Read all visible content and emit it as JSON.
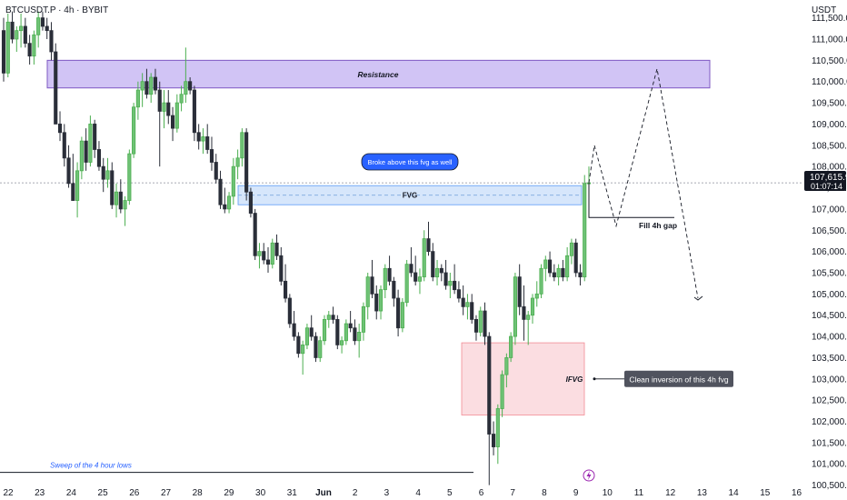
{
  "header": {
    "symbol": "BTCUSDT.P · 4h · BYBIT",
    "currency": "USDT"
  },
  "price_tag": {
    "price": "107,615.9",
    "countdown": "01:07:14"
  },
  "chart_data": {
    "type": "candlestick",
    "y_range": [
      100400,
      111700
    ],
    "y_ticks": [
      100500,
      101000,
      101500,
      102000,
      102500,
      103000,
      103500,
      104000,
      104500,
      105000,
      105500,
      106000,
      106500,
      107000,
      107500,
      108000,
      108500,
      109000,
      109500,
      110000,
      110500,
      111000,
      111500
    ],
    "y_tick_labels": [
      "100,500.0",
      "101,000.0",
      "101,500.0",
      "102,000.0",
      "102,500.0",
      "103,000.0",
      "103,500.0",
      "104,000.0",
      "104,500.0",
      "105,000.0",
      "105,500.0",
      "106,000.0",
      "106,500.0",
      "107,000.0",
      "107,500.0",
      "108,000.0",
      "108,500.0",
      "109,000.0",
      "109,500.0",
      "110,000.0",
      "110,500.0",
      "111,000.0",
      "111,500.0"
    ],
    "x_ticks": [
      "22",
      "23",
      "24",
      "25",
      "26",
      "27",
      "28",
      "29",
      "30",
      "31",
      "Jun",
      "2",
      "3",
      "4",
      "5",
      "6",
      "7",
      "8",
      "9",
      "10",
      "11",
      "12",
      "13",
      "14",
      "15",
      "16"
    ],
    "x_tick_bold": [
      false,
      false,
      false,
      false,
      false,
      false,
      false,
      false,
      false,
      false,
      true,
      false,
      false,
      false,
      false,
      false,
      false,
      false,
      false,
      false,
      false,
      false,
      false,
      false,
      false,
      false
    ],
    "candles": [
      [
        111200,
        111500,
        110000,
        110200
      ],
      [
        110200,
        111600,
        110100,
        111400
      ],
      [
        111400,
        111650,
        110900,
        111000
      ],
      [
        111000,
        111300,
        110700,
        111200
      ],
      [
        111200,
        111600,
        110800,
        111300
      ],
      [
        111300,
        111500,
        110800,
        110900
      ],
      [
        110900,
        111100,
        110400,
        110600
      ],
      [
        110600,
        111200,
        110400,
        111100
      ],
      [
        111100,
        111650,
        110800,
        111500
      ],
      [
        111500,
        111650,
        111200,
        111300
      ],
      [
        111300,
        111500,
        111000,
        111200
      ],
      [
        111200,
        111400,
        110500,
        110700
      ],
      [
        110700,
        110900,
        109000,
        109000
      ],
      [
        109000,
        109300,
        108600,
        108800
      ],
      [
        108800,
        109000,
        108000,
        108200
      ],
      [
        108200,
        108500,
        107500,
        107600
      ],
      [
        107600,
        108300,
        107200,
        107200
      ],
      [
        107200,
        108100,
        106800,
        107900
      ],
      [
        107900,
        108700,
        107700,
        108600
      ],
      [
        108600,
        108900,
        107900,
        108100
      ],
      [
        108100,
        109200,
        108000,
        109000
      ],
      [
        109000,
        109100,
        108200,
        108400
      ],
      [
        108400,
        108600,
        107900,
        108000
      ],
      [
        108000,
        108200,
        107400,
        107700
      ],
      [
        107700,
        108200,
        107500,
        107900
      ],
      [
        107900,
        108100,
        107000,
        107100
      ],
      [
        107100,
        107600,
        106800,
        107400
      ],
      [
        107400,
        107700,
        106900,
        107000
      ],
      [
        107000,
        107300,
        106600,
        107200
      ],
      [
        107200,
        108400,
        107100,
        108300
      ],
      [
        108300,
        109500,
        108200,
        109400
      ],
      [
        109400,
        110000,
        109100,
        109800
      ],
      [
        109800,
        110200,
        109400,
        110000
      ],
      [
        110000,
        110300,
        109600,
        109700
      ],
      [
        109700,
        110200,
        109500,
        110100
      ],
      [
        110100,
        110300,
        109700,
        109800
      ],
      [
        109800,
        110000,
        108000,
        109300
      ],
      [
        109300,
        109800,
        108900,
        109500
      ],
      [
        109500,
        109800,
        109000,
        109200
      ],
      [
        109200,
        109400,
        108600,
        108900
      ],
      [
        108900,
        109700,
        108800,
        109500
      ],
      [
        109500,
        109900,
        109300,
        109700
      ],
      [
        109700,
        110800,
        109500,
        110000
      ],
      [
        110000,
        110100,
        109700,
        109800
      ],
      [
        109800,
        109900,
        108600,
        108800
      ],
      [
        108800,
        109000,
        108400,
        108600
      ],
      [
        108600,
        108900,
        108300,
        108700
      ],
      [
        108700,
        109000,
        108300,
        108400
      ],
      [
        108400,
        108700,
        107900,
        108100
      ],
      [
        108100,
        108300,
        107600,
        107700
      ],
      [
        107700,
        107900,
        107000,
        107100
      ],
      [
        107100,
        107500,
        106900,
        107000
      ],
      [
        107000,
        107400,
        106900,
        107300
      ],
      [
        107300,
        108200,
        107100,
        108000
      ],
      [
        108000,
        108400,
        107700,
        108200
      ],
      [
        108200,
        108900,
        108000,
        108800
      ],
      [
        108800,
        108900,
        107200,
        107400
      ],
      [
        107400,
        107500,
        106800,
        106900
      ],
      [
        106900,
        107000,
        105800,
        105900
      ],
      [
        105900,
        106200,
        105600,
        106000
      ],
      [
        106000,
        106200,
        105700,
        105800
      ],
      [
        105800,
        106100,
        105500,
        105700
      ],
      [
        105700,
        106300,
        105600,
        106200
      ],
      [
        106200,
        106400,
        105800,
        105900
      ],
      [
        105900,
        106100,
        105200,
        105300
      ],
      [
        105300,
        105700,
        104800,
        104900
      ],
      [
        104900,
        105000,
        104200,
        104300
      ],
      [
        104300,
        104600,
        103900,
        104000
      ],
      [
        104000,
        104100,
        103500,
        103600
      ],
      [
        103600,
        103900,
        103100,
        103800
      ],
      [
        103800,
        104300,
        103700,
        104200
      ],
      [
        104200,
        104500,
        103900,
        104000
      ],
      [
        104000,
        104100,
        103400,
        103500
      ],
      [
        103500,
        104000,
        103400,
        103900
      ],
      [
        103900,
        104500,
        103800,
        104400
      ],
      [
        104400,
        104600,
        104200,
        104500
      ],
      [
        104500,
        104700,
        104300,
        104400
      ],
      [
        104400,
        104500,
        103700,
        103800
      ],
      [
        103800,
        104000,
        103600,
        103900
      ],
      [
        103900,
        104400,
        103800,
        104300
      ],
      [
        104300,
        104600,
        104100,
        104200
      ],
      [
        104200,
        104400,
        103800,
        103900
      ],
      [
        103900,
        104300,
        103500,
        104100
      ],
      [
        104100,
        104800,
        103900,
        104700
      ],
      [
        104700,
        105500,
        104400,
        105400
      ],
      [
        105400,
        105800,
        104900,
        105000
      ],
      [
        105000,
        105200,
        104400,
        104600
      ],
      [
        104600,
        105200,
        104400,
        105100
      ],
      [
        105100,
        105700,
        104900,
        105600
      ],
      [
        105600,
        105900,
        105200,
        105300
      ],
      [
        105300,
        105400,
        104700,
        104900
      ],
      [
        104900,
        105100,
        104000,
        104200
      ],
      [
        104200,
        104900,
        104100,
        104800
      ],
      [
        104800,
        105800,
        104700,
        105700
      ],
      [
        105700,
        106100,
        105400,
        105500
      ],
      [
        105500,
        105900,
        105200,
        105300
      ],
      [
        105300,
        105600,
        105000,
        105400
      ],
      [
        105400,
        106500,
        105300,
        106300
      ],
      [
        106300,
        106700,
        105900,
        106000
      ],
      [
        106000,
        106200,
        105300,
        105400
      ],
      [
        105400,
        105800,
        105200,
        105600
      ],
      [
        105600,
        105700,
        105300,
        105500
      ],
      [
        105500,
        105800,
        105100,
        105200
      ],
      [
        105200,
        105500,
        104900,
        105300
      ],
      [
        105300,
        105700,
        105000,
        105100
      ],
      [
        105100,
        105300,
        104800,
        104900
      ],
      [
        104900,
        105200,
        104500,
        104700
      ],
      [
        104700,
        105000,
        104400,
        104800
      ],
      [
        104800,
        105000,
        104300,
        104400
      ],
      [
        104400,
        104500,
        103900,
        104100
      ],
      [
        104100,
        104700,
        104000,
        104600
      ],
      [
        104600,
        104800,
        103800,
        104000
      ],
      [
        104000,
        104100,
        100500,
        101700
      ],
      [
        101700,
        102000,
        101200,
        101400
      ],
      [
        101400,
        102400,
        101000,
        102300
      ],
      [
        102300,
        103200,
        102100,
        103100
      ],
      [
        103100,
        103600,
        102800,
        103500
      ],
      [
        103500,
        104100,
        103400,
        104000
      ],
      [
        104000,
        105500,
        103800,
        105400
      ],
      [
        105400,
        105700,
        104500,
        104700
      ],
      [
        104700,
        105200,
        103900,
        104400
      ],
      [
        104400,
        104600,
        103800,
        104500
      ],
      [
        104500,
        105000,
        104300,
        104900
      ],
      [
        104900,
        105300,
        104700,
        105000
      ],
      [
        105000,
        105700,
        104900,
        105600
      ],
      [
        105600,
        105900,
        105300,
        105800
      ],
      [
        105800,
        106000,
        105400,
        105500
      ],
      [
        105500,
        105700,
        105300,
        105400
      ],
      [
        105400,
        105700,
        105200,
        105600
      ],
      [
        105600,
        105800,
        105300,
        105400
      ],
      [
        105400,
        106100,
        105300,
        105900
      ],
      [
        105900,
        106300,
        105700,
        106200
      ],
      [
        106200,
        106300,
        105400,
        105500
      ],
      [
        105500,
        105700,
        105200,
        105400
      ],
      [
        105400,
        107800,
        105300,
        107600
      ],
      [
        107600,
        108000,
        107500,
        107616
      ]
    ],
    "zones": [
      {
        "label": "Resistance",
        "from": 109850,
        "to": 110500
      },
      {
        "label": "FVG",
        "from": 107100,
        "to": 107550
      },
      {
        "label": "IFVG",
        "from": 102150,
        "to": 103850
      }
    ],
    "annotations": {
      "broke_above": "Broke above this fvg as well",
      "fill_gap": "Fill 4h gap",
      "clean_inversion": "Clean inversion of this 4h fvg",
      "sweep": "Sweep of the 4 hour lows"
    },
    "sweep_level": 100800,
    "fill_gap_level": 106800,
    "current_price": 107616,
    "projection": [
      [
        107616
      ],
      [
        108500
      ],
      [
        106600
      ],
      [
        110300
      ],
      [
        104900
      ]
    ],
    "lightning_icon": "lightning-icon"
  }
}
